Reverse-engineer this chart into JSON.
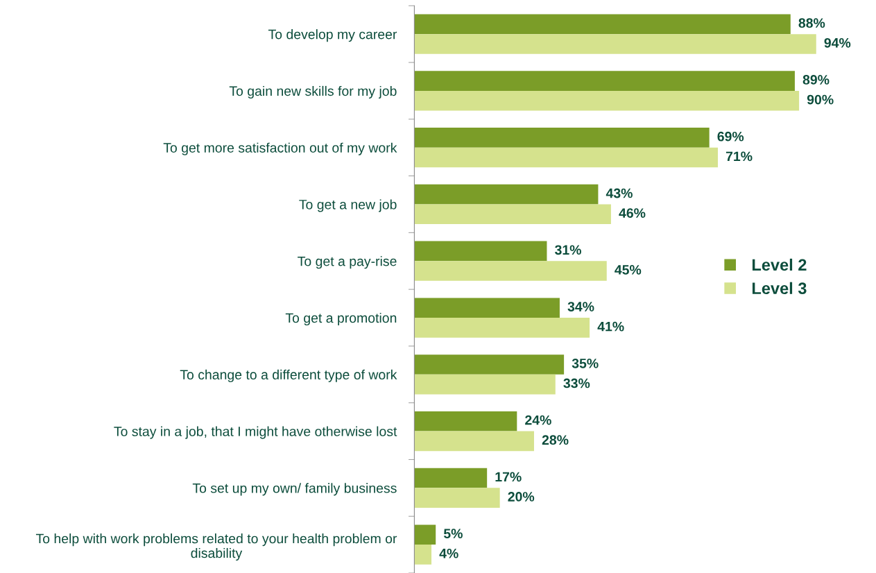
{
  "chart_data": {
    "type": "bar",
    "orientation": "horizontal",
    "categories": [
      "To develop my career",
      "To gain new skills for my job",
      "To get more satisfaction out of my work",
      "To get a new job",
      "To get a pay-rise",
      "To get a promotion",
      "To change to a different type of work",
      "To stay in a job, that I might have otherwise lost",
      "To set up my own/ family business",
      "To help with work problems related to your health problem or\ndisability"
    ],
    "series": [
      {
        "name": "Level 2",
        "color": "#7b9d28",
        "values": [
          88,
          89,
          69,
          43,
          31,
          34,
          35,
          24,
          17,
          5
        ],
        "value_labels": [
          "88%",
          "89%",
          "69%",
          "43%",
          "31%",
          "34%",
          "35%",
          "24%",
          "17%",
          "5%"
        ]
      },
      {
        "name": "Level 3",
        "color": "#d5e28d",
        "values": [
          94,
          90,
          71,
          46,
          45,
          41,
          33,
          28,
          20,
          4
        ],
        "value_labels": [
          "94%",
          "90%",
          "71%",
          "46%",
          "45%",
          "41%",
          "33%",
          "28%",
          "20%",
          "4%"
        ]
      }
    ],
    "legend": "right",
    "grid": false
  }
}
